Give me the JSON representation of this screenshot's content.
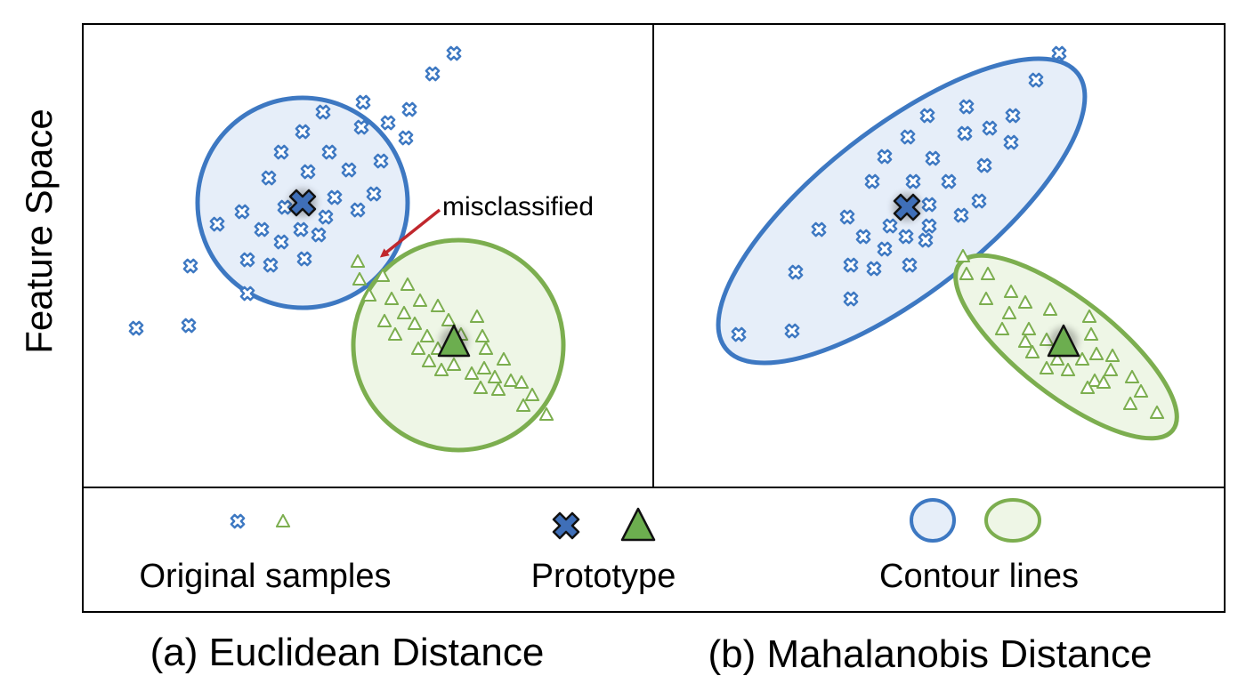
{
  "y_axis_label": "Feature Space",
  "annotation": "misclassified",
  "legend": {
    "samples_label": "Original samples",
    "prototype_label": "Prototype",
    "contour_label": "Contour lines"
  },
  "captions": {
    "left": "(a) Euclidean Distance",
    "right": "(b) Mahalanobis Distance"
  },
  "colors": {
    "blue_stroke": "#3d78c2",
    "blue_fill": "#e6eef9",
    "green_stroke": "#7cae4f",
    "green_fill": "#eef6e6",
    "proto_blue": "#3f6fb8",
    "proto_green": "#6cae4f",
    "arrow": "#c0272d"
  },
  "icons": {
    "sample_class_a": "blue-x-icon",
    "sample_class_b": "green-triangle-icon",
    "prototype_a": "blue-x-prototype-icon",
    "prototype_b": "green-triangle-prototype-icon",
    "contour_a": "blue-ellipse-icon",
    "contour_b": "green-ellipse-icon"
  }
}
